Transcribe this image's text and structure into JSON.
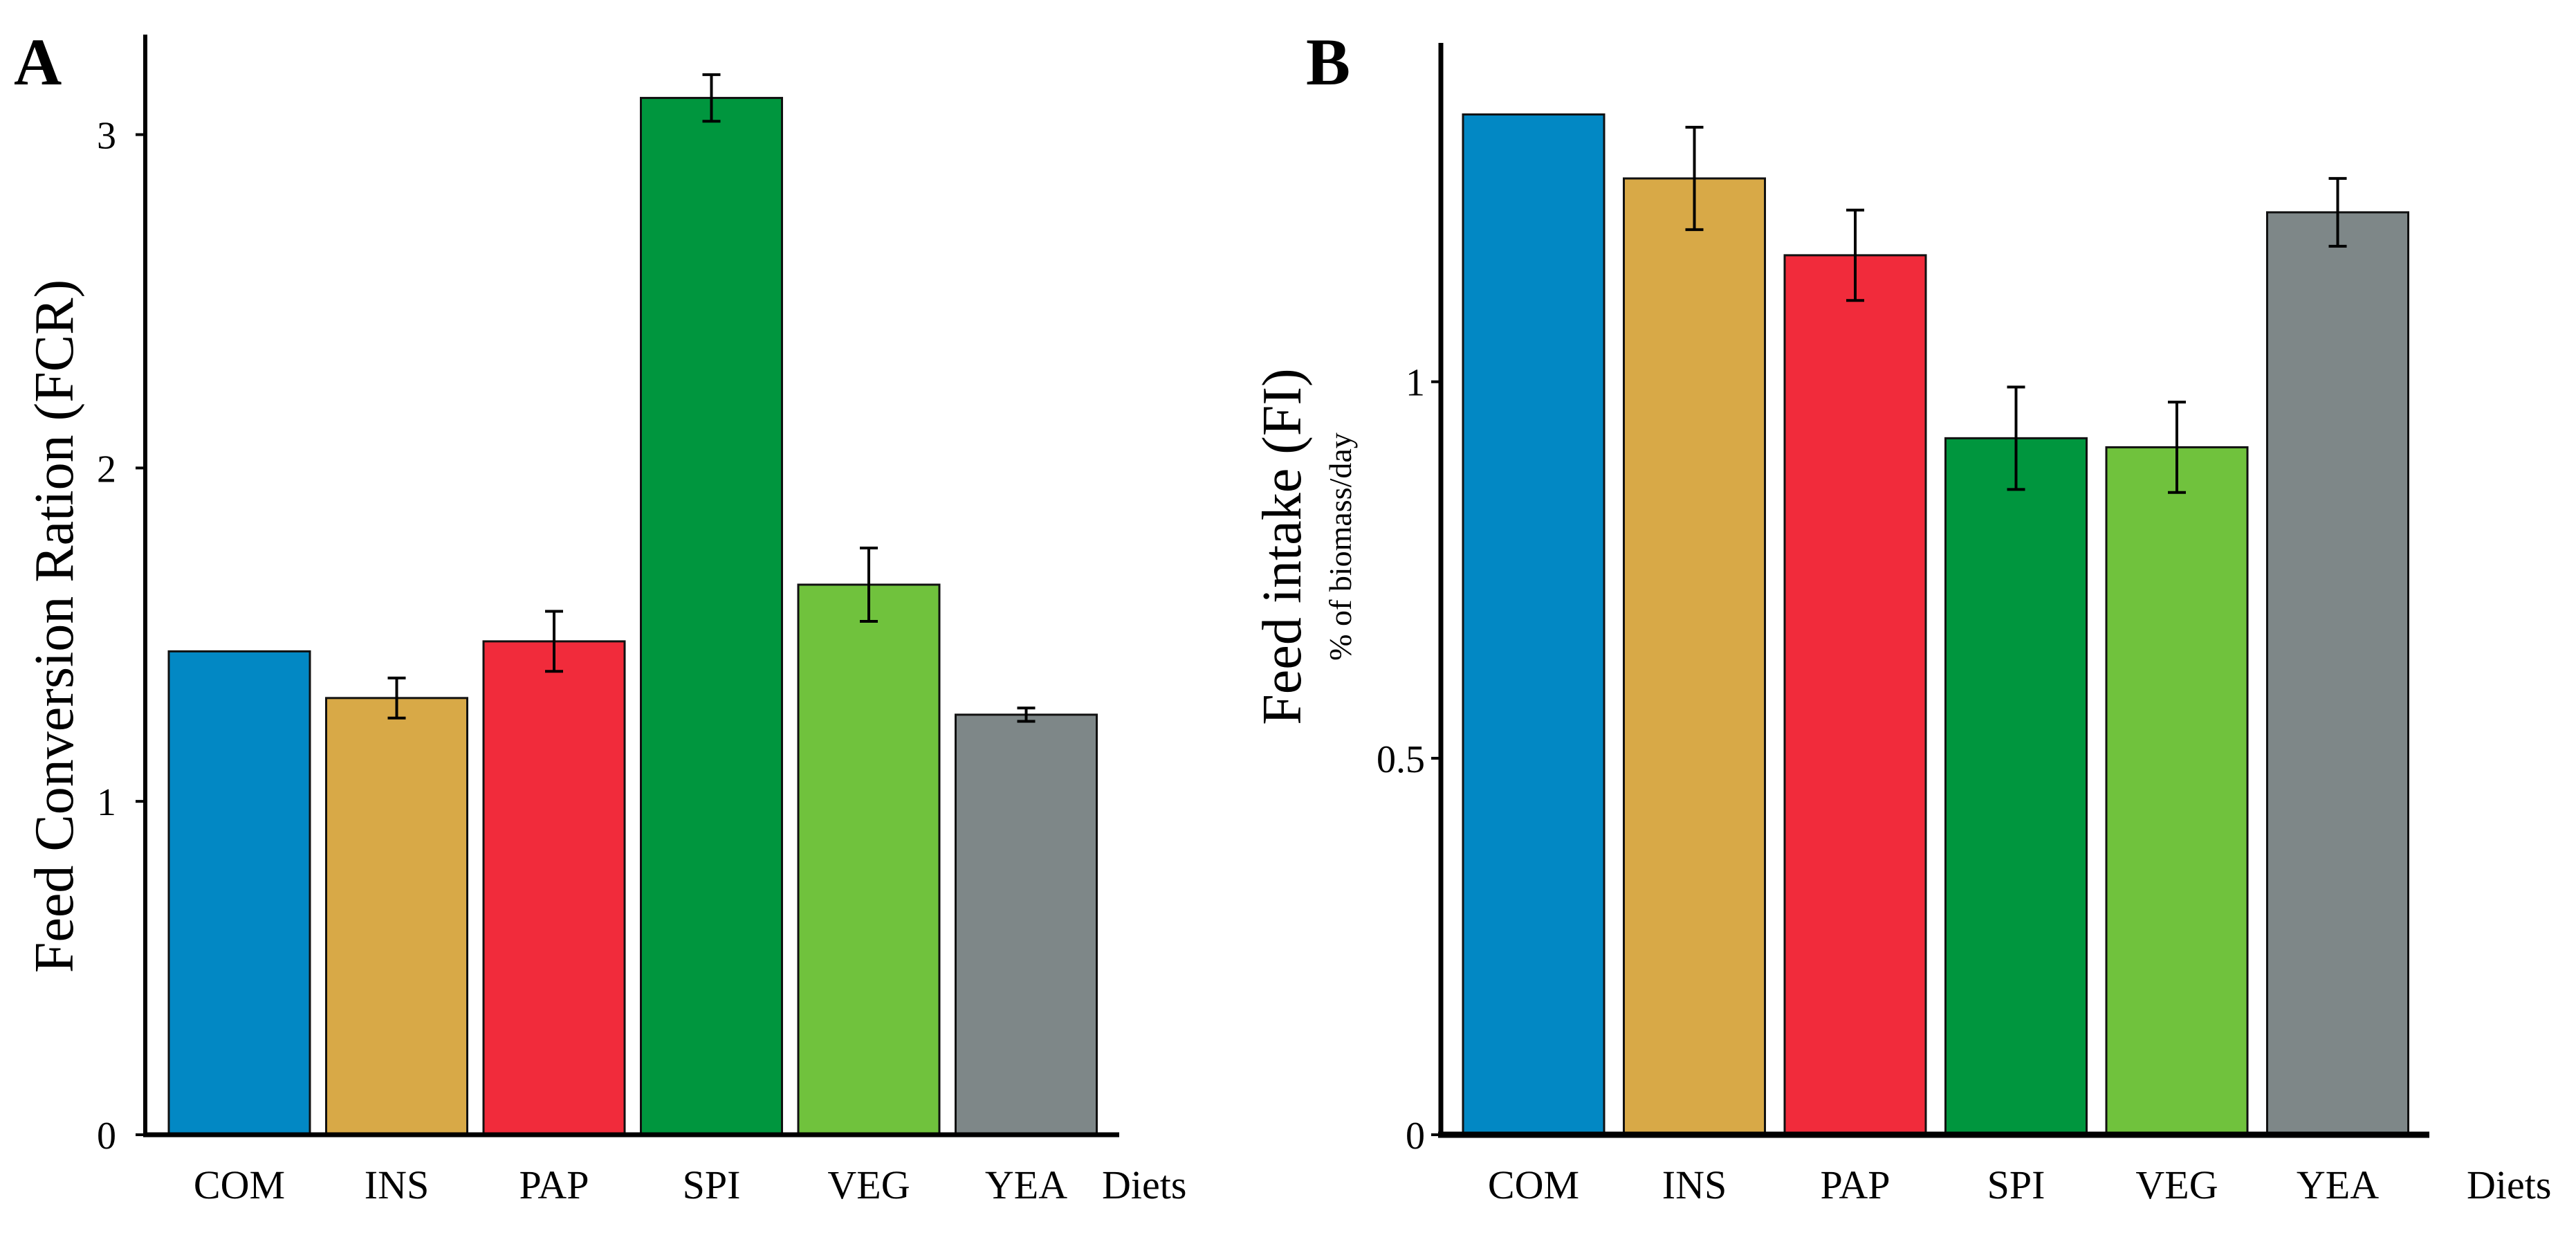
{
  "chart_data": [
    {
      "type": "bar",
      "panel_label": "A",
      "title": "",
      "xlabel": "Diets",
      "ylabel": "Feed Conversion Ration (FCR)",
      "ylabel_sub": "",
      "ylim": [
        0,
        3.3
      ],
      "yticks": [
        0,
        1,
        2,
        3
      ],
      "ytick_labels": [
        "0",
        "1",
        "2",
        "3"
      ],
      "grid": false,
      "categories": [
        "COM",
        "INS",
        "PAP",
        "SPI",
        "VEG",
        "YEA"
      ],
      "values": [
        1.45,
        1.31,
        1.48,
        3.11,
        1.65,
        1.26
      ],
      "errors": [
        0.0,
        0.06,
        0.09,
        0.07,
        0.11,
        0.02
      ],
      "colors": [
        "#0288c4",
        "#d8a947",
        "#f12b3b",
        "#00963e",
        "#70c23d",
        "#7e8788"
      ]
    },
    {
      "type": "bar",
      "panel_label": "B",
      "title": "",
      "xlabel": "Diets",
      "ylabel": "Feed intake (FI)",
      "ylabel_sub": "% of biomass/day",
      "ylim": [
        0,
        1.45
      ],
      "yticks": [
        0,
        0.5,
        1
      ],
      "ytick_labels": [
        "0",
        "0.5",
        "1"
      ],
      "grid": false,
      "categories": [
        "COM",
        "INS",
        "PAP",
        "SPI",
        "VEG",
        "YEA"
      ],
      "values": [
        1.355,
        1.27,
        1.168,
        0.925,
        0.913,
        1.225
      ],
      "errors": [
        0.0,
        0.068,
        0.06,
        0.068,
        0.06,
        0.045
      ],
      "colors": [
        "#0288c4",
        "#d8a947",
        "#f12b3b",
        "#00963e",
        "#70c23d",
        "#7e8788"
      ]
    }
  ]
}
